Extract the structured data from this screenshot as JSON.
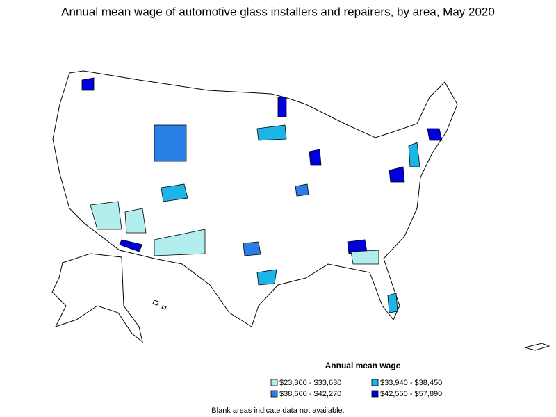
{
  "title": "Annual mean wage of automotive glass installers and repairers, by area, May 2020",
  "legend": {
    "title": "Annual mean wage",
    "items": [
      {
        "label": "$23,300 - $33,630",
        "color": "#b3eeee"
      },
      {
        "label": "$33,940 - $38,450",
        "color": "#1cb5e8"
      },
      {
        "label": "$38,660 - $42,270",
        "color": "#2a7fe6"
      },
      {
        "label": "$42,550 - $57,890",
        "color": "#0000dd"
      }
    ]
  },
  "footnote": "Blank areas indicate data not available."
}
